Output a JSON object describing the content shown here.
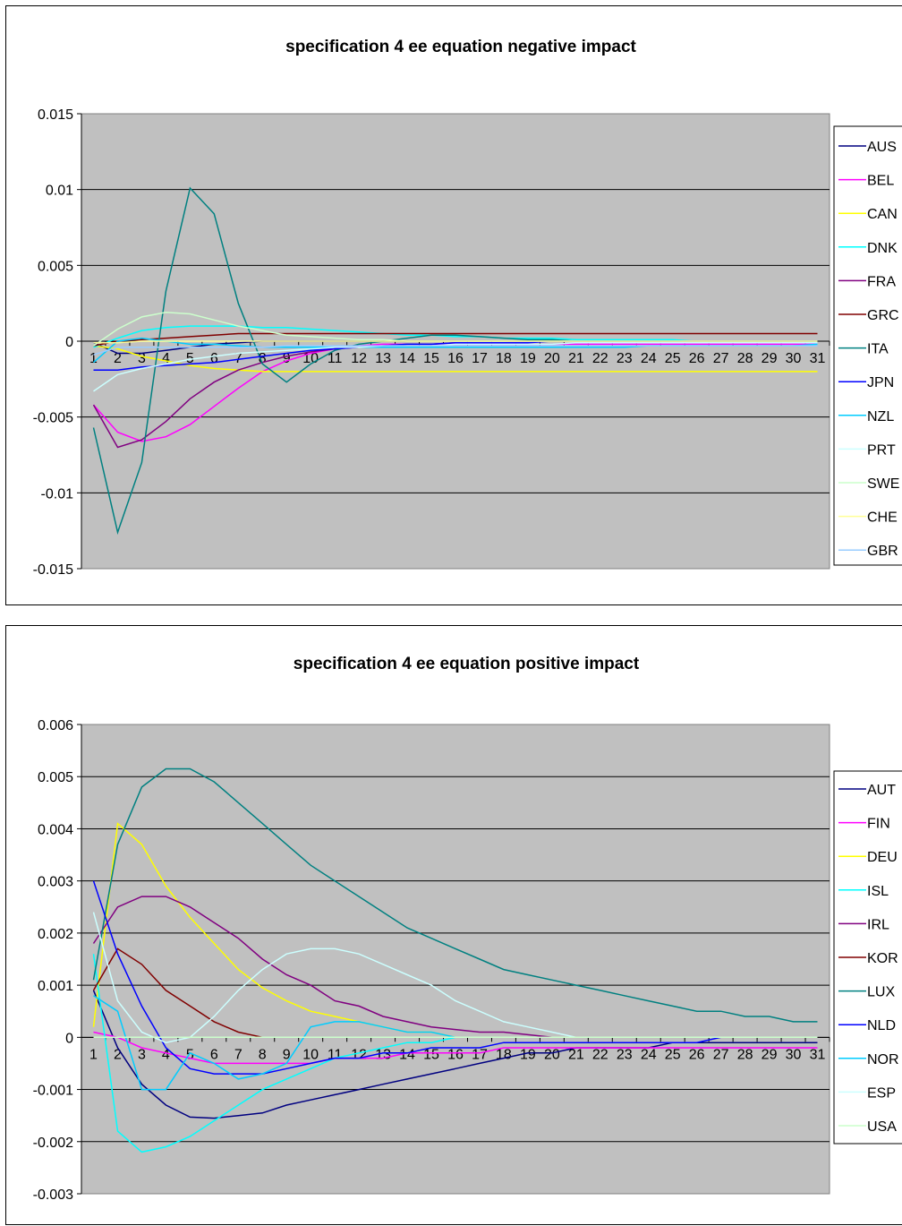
{
  "chart_data": [
    {
      "type": "line",
      "title": "specification 4 ee equation negative impact",
      "xlabel": "",
      "ylabel": "",
      "x": [
        1,
        2,
        3,
        4,
        5,
        6,
        7,
        8,
        9,
        10,
        11,
        12,
        13,
        14,
        15,
        16,
        17,
        18,
        19,
        20,
        21,
        22,
        23,
        24,
        25,
        26,
        27,
        28,
        29,
        30,
        31
      ],
      "ylim": [
        -0.015,
        0.015
      ],
      "yticks": [
        -0.015,
        -0.01,
        -0.005,
        0,
        0.005,
        0.01,
        0.015
      ],
      "ytick_labels": [
        "-0.015",
        "-0.01",
        "-0.005",
        "0",
        "0.005",
        "0.01",
        "0.015"
      ],
      "grid": true,
      "legend_position": "right",
      "series": [
        {
          "name": "AUS",
          "color": "#000080",
          "values": [
            -0.0001,
            -0.0008,
            -0.0008,
            -0.0006,
            -0.0004,
            -0.0002,
            -0.0001,
            0,
            0,
            0,
            0,
            0,
            0,
            0,
            0,
            0,
            0,
            0,
            0,
            0,
            0,
            0,
            0,
            0,
            0,
            0,
            0,
            0,
            0,
            0,
            0
          ]
        },
        {
          "name": "BEL",
          "color": "#ff00ff",
          "values": [
            -0.0042,
            -0.006,
            -0.0066,
            -0.0063,
            -0.0055,
            -0.0043,
            -0.0031,
            -0.002,
            -0.0013,
            -0.0008,
            -0.0005,
            -0.0003,
            -0.0002,
            -0.0002,
            -0.0002,
            -0.0002,
            -0.0002,
            -0.0002,
            -0.0002,
            -0.0002,
            -0.0002,
            -0.0002,
            -0.0002,
            -0.0002,
            -0.0002,
            -0.0002,
            -0.0002,
            -0.0002,
            -0.0002,
            -0.0002,
            -0.0002
          ]
        },
        {
          "name": "CAN",
          "color": "#ffff00",
          "values": [
            -0.0003,
            -0.0005,
            -0.001,
            -0.0013,
            -0.0016,
            -0.0018,
            -0.0019,
            -0.002,
            -0.002,
            -0.002,
            -0.002,
            -0.002,
            -0.002,
            -0.002,
            -0.002,
            -0.002,
            -0.002,
            -0.002,
            -0.002,
            -0.002,
            -0.002,
            -0.002,
            -0.002,
            -0.002,
            -0.002,
            -0.002,
            -0.002,
            -0.002,
            -0.002,
            -0.002,
            -0.002
          ]
        },
        {
          "name": "DNK",
          "color": "#00ffff",
          "values": [
            -0.0004,
            0.0002,
            0.0007,
            0.0009,
            0.001,
            0.001,
            0.001,
            0.0009,
            0.0009,
            0.0008,
            0.0007,
            0.0006,
            0.0005,
            0.0004,
            0.0004,
            0.0003,
            0.0003,
            0.0002,
            0.0002,
            0.0002,
            0.0001,
            0.0001,
            0.0001,
            0.0001,
            0.0001,
            0,
            0,
            0,
            0,
            0,
            0
          ]
        },
        {
          "name": "FRA",
          "color": "#800080",
          "values": [
            -0.0042,
            -0.007,
            -0.0065,
            -0.0053,
            -0.0038,
            -0.0027,
            -0.0019,
            -0.0014,
            -0.001,
            -0.0007,
            -0.0005,
            -0.0004,
            -0.0003,
            -0.0002,
            -0.0002,
            -0.0001,
            -0.0001,
            -0.0001,
            0,
            0,
            0,
            0,
            0,
            0,
            0,
            0,
            0,
            0,
            0,
            0,
            0
          ]
        },
        {
          "name": "GRC",
          "color": "#800000",
          "values": [
            -0.0003,
            0,
            0.0001,
            0.0002,
            0.0003,
            0.0004,
            0.0005,
            0.0005,
            0.0005,
            0.0005,
            0.0005,
            0.0005,
            0.0005,
            0.0005,
            0.0005,
            0.0005,
            0.0005,
            0.0005,
            0.0005,
            0.0005,
            0.0005,
            0.0005,
            0.0005,
            0.0005,
            0.0005,
            0.0005,
            0.0005,
            0.0005,
            0.0005,
            0.0005,
            0.0005
          ]
        },
        {
          "name": "ITA",
          "color": "#008080",
          "values": [
            -0.0057,
            -0.0126,
            -0.008,
            0.0033,
            0.0101,
            0.0084,
            0.0025,
            -0.0015,
            -0.0027,
            -0.0015,
            -0.0006,
            -0.0002,
            0,
            0.0002,
            0.0004,
            0.0004,
            0.0003,
            0.0002,
            0.0001,
            0.0001,
            0,
            0,
            0,
            0,
            0,
            0,
            0,
            0,
            0,
            0,
            0
          ]
        },
        {
          "name": "JPN",
          "color": "#0000ff",
          "values": [
            -0.0019,
            -0.0019,
            -0.0017,
            -0.0016,
            -0.0015,
            -0.0014,
            -0.0012,
            -0.001,
            -0.0008,
            -0.0006,
            -0.0005,
            -0.0004,
            -0.0003,
            -0.0002,
            -0.0002,
            -0.0001,
            -0.0001,
            -0.0001,
            -0.0001,
            0,
            0,
            0,
            0,
            0,
            0,
            0,
            0,
            0,
            0,
            0,
            0
          ]
        },
        {
          "name": "NZL",
          "color": "#00ccff",
          "values": [
            -0.0014,
            0,
            0.0002,
            0,
            -0.0002,
            -0.0002,
            -0.0003,
            -0.0004,
            -0.0004,
            -0.0004,
            -0.0004,
            -0.0004,
            -0.0004,
            -0.0004,
            -0.0004,
            -0.0004,
            -0.0004,
            -0.0004,
            -0.0004,
            -0.0004,
            -0.0004,
            -0.0004,
            -0.0004,
            -0.0003,
            -0.0003,
            -0.0003,
            -0.0003,
            -0.0003,
            -0.0003,
            -0.0003,
            -0.0002
          ]
        },
        {
          "name": "PRT",
          "color": "#ccffff",
          "values": [
            -0.0033,
            -0.0022,
            -0.0018,
            -0.0015,
            -0.0012,
            -0.001,
            -0.0008,
            -0.0007,
            -0.0006,
            -0.0005,
            -0.0004,
            -0.0004,
            -0.0003,
            -0.0003,
            -0.0003,
            -0.0002,
            -0.0002,
            -0.0002,
            -0.0002,
            -0.0002,
            -0.0001,
            -0.0001,
            -0.0001,
            -0.0001,
            -0.0001,
            -0.0001,
            -0.0001,
            -0.0001,
            -0.0001,
            -0.0001,
            -0.0001
          ]
        },
        {
          "name": "SWE",
          "color": "#ccffcc",
          "values": [
            -0.0003,
            0.0008,
            0.0016,
            0.0019,
            0.0018,
            0.0014,
            0.001,
            0.0007,
            0.0004,
            0.0003,
            0.0002,
            0.0001,
            0.0001,
            0,
            0,
            0,
            0,
            0,
            0,
            0,
            0,
            0,
            0,
            0,
            0,
            0,
            0,
            0,
            0,
            0,
            0
          ]
        },
        {
          "name": "CHE",
          "color": "#ffff99",
          "values": [
            -0.0001,
            -0.0001,
            0,
            0,
            0,
            0,
            0,
            0,
            0,
            0,
            0,
            0,
            0,
            0,
            0,
            0,
            0,
            0,
            0,
            0,
            0,
            0,
            0,
            0,
            0,
            0,
            0,
            0,
            0,
            0,
            0
          ]
        },
        {
          "name": "GBR",
          "color": "#99ccff",
          "values": [
            -0.0009,
            -0.0004,
            -0.0004,
            -0.0004,
            -0.0004,
            -0.0004,
            -0.0004,
            -0.0004,
            -0.0003,
            -0.0003,
            -0.0003,
            -0.0003,
            -0.0003,
            -0.0003,
            -0.0003,
            -0.0003,
            -0.0003,
            -0.0003,
            -0.0003,
            -0.0003,
            -0.0003,
            -0.0003,
            -0.0003,
            -0.0003,
            -0.0003,
            -0.0003,
            -0.0003,
            -0.0003,
            -0.0003,
            -0.0003,
            -0.0003
          ]
        }
      ]
    },
    {
      "type": "line",
      "title": "specification 4 ee  equation positive impact",
      "xlabel": "",
      "ylabel": "",
      "x": [
        1,
        2,
        3,
        4,
        5,
        6,
        7,
        8,
        9,
        10,
        11,
        12,
        13,
        14,
        15,
        16,
        17,
        18,
        19,
        20,
        21,
        22,
        23,
        24,
        25,
        26,
        27,
        28,
        29,
        30,
        31
      ],
      "ylim": [
        -0.003,
        0.006
      ],
      "yticks": [
        -0.003,
        -0.002,
        -0.001,
        0,
        0.001,
        0.002,
        0.003,
        0.004,
        0.005,
        0.006
      ],
      "ytick_labels": [
        "-0.003",
        "-0.002",
        "-0.001",
        "0",
        "0.001",
        "0.002",
        "0.003",
        "0.004",
        "0.005",
        "0.006"
      ],
      "grid": true,
      "legend_position": "right",
      "series": [
        {
          "name": "AUT",
          "color": "#000080",
          "values": [
            0.0009,
            -0.0002,
            -0.0009,
            -0.0013,
            -0.00153,
            -0.00155,
            -0.0015,
            -0.00145,
            -0.0013,
            -0.0012,
            -0.0011,
            -0.001,
            -0.0009,
            -0.0008,
            -0.0007,
            -0.0006,
            -0.0005,
            -0.0004,
            -0.0003,
            -0.0003,
            -0.0002,
            -0.0002,
            -0.0002,
            -0.0002,
            -0.0001,
            -0.0001,
            -0.0001,
            -0.0001,
            -0.0001,
            -0.0001,
            -0.0001
          ]
        },
        {
          "name": "FIN",
          "color": "#ff00ff",
          "values": [
            0.0001,
            0,
            -0.0002,
            -0.0003,
            -0.0004,
            -0.0005,
            -0.0005,
            -0.0005,
            -0.0005,
            -0.0005,
            -0.0004,
            -0.0004,
            -0.0004,
            -0.0003,
            -0.0003,
            -0.0003,
            -0.0003,
            -0.0002,
            -0.0002,
            -0.0002,
            -0.0002,
            -0.0002,
            -0.0002,
            -0.0002,
            -0.0002,
            -0.0002,
            -0.0002,
            -0.0002,
            -0.0002,
            -0.0002,
            -0.0002
          ]
        },
        {
          "name": "DEU",
          "color": "#ffff00",
          "values": [
            0.0002,
            0.0041,
            0.0037,
            0.0029,
            0.0023,
            0.0018,
            0.0013,
            0.00095,
            0.0007,
            0.0005,
            0.0004,
            0.0003,
            0.0002,
            0.0001,
            0.0001,
            0,
            0,
            0,
            0,
            0,
            0,
            0,
            0,
            0,
            0,
            0,
            0,
            0,
            0,
            0,
            0
          ]
        },
        {
          "name": "ISL",
          "color": "#00ffff",
          "values": [
            0.0016,
            -0.0018,
            -0.0022,
            -0.0021,
            -0.0019,
            -0.0016,
            -0.0013,
            -0.001,
            -0.0008,
            -0.0006,
            -0.0004,
            -0.0003,
            -0.0002,
            -0.0001,
            -0.0001,
            0,
            0,
            0,
            0,
            0,
            0,
            0,
            0,
            0,
            0,
            0,
            0,
            0,
            0,
            0,
            0
          ]
        },
        {
          "name": "IRL",
          "color": "#800080",
          "values": [
            0.0018,
            0.0025,
            0.0027,
            0.0027,
            0.0025,
            0.0022,
            0.0019,
            0.0015,
            0.0012,
            0.001,
            0.0007,
            0.0006,
            0.0004,
            0.0003,
            0.0002,
            0.00015,
            0.0001,
            0.0001,
            5e-05,
            0,
            0,
            0,
            0,
            0,
            0,
            0,
            0,
            0,
            0,
            0,
            0
          ]
        },
        {
          "name": "KOR",
          "color": "#800000",
          "values": [
            0.0009,
            0.0017,
            0.0014,
            0.0009,
            0.0006,
            0.0003,
            0.0001,
            0,
            0,
            0,
            0,
            0,
            0,
            0,
            0,
            0,
            0,
            0,
            0,
            0,
            0,
            0,
            0,
            0,
            0,
            0,
            0,
            0,
            0,
            0,
            0
          ]
        },
        {
          "name": "LUX",
          "color": "#008080",
          "values": [
            0.0011,
            0.0037,
            0.0048,
            0.00515,
            0.00515,
            0.0049,
            0.0045,
            0.0041,
            0.0037,
            0.0033,
            0.003,
            0.0027,
            0.0024,
            0.0021,
            0.0019,
            0.0017,
            0.0015,
            0.0013,
            0.0012,
            0.0011,
            0.001,
            0.0009,
            0.0008,
            0.0007,
            0.0006,
            0.0005,
            0.0005,
            0.0004,
            0.0004,
            0.0003,
            0.0003
          ]
        },
        {
          "name": "NLD",
          "color": "#0000ff",
          "values": [
            0.003,
            0.0016,
            0.0006,
            -0.0002,
            -0.0006,
            -0.0007,
            -0.0007,
            -0.0007,
            -0.0006,
            -0.0005,
            -0.0004,
            -0.0004,
            -0.0003,
            -0.0003,
            -0.0002,
            -0.0002,
            -0.0002,
            -0.0001,
            -0.0001,
            -0.0001,
            -0.0001,
            -0.0001,
            -0.0001,
            -0.0001,
            -0.0001,
            -0.0001,
            0,
            0,
            0,
            0,
            0
          ]
        },
        {
          "name": "NOR",
          "color": "#00ccff",
          "values": [
            0.0008,
            0.0005,
            -0.001,
            -0.001,
            -0.0003,
            -0.0005,
            -0.0008,
            -0.0007,
            -0.0005,
            0.0002,
            0.0003,
            0.0003,
            0.0002,
            0.0001,
            0.0001,
            0,
            0,
            0,
            0,
            0,
            0,
            0,
            0,
            0,
            0,
            0,
            0,
            0,
            0,
            0,
            0
          ]
        },
        {
          "name": "ESP",
          "color": "#ccffff",
          "values": [
            0.0024,
            0.0007,
            0.0001,
            -0.0001,
            0,
            0.0004,
            0.0009,
            0.0013,
            0.0016,
            0.0017,
            0.0017,
            0.0016,
            0.0014,
            0.0012,
            0.001,
            0.0007,
            0.0005,
            0.0003,
            0.0002,
            0.0001,
            0,
            0,
            0,
            0,
            0,
            0,
            0,
            0,
            0,
            0,
            0
          ]
        },
        {
          "name": "USA",
          "color": "#ccffcc",
          "values": [
            0,
            0,
            0,
            0,
            0,
            0,
            0,
            0,
            0,
            0,
            0,
            0,
            0,
            0,
            0,
            0,
            0,
            0,
            0,
            0,
            0,
            0,
            0,
            0,
            0,
            0,
            0,
            0,
            0,
            0,
            0
          ]
        }
      ]
    }
  ]
}
